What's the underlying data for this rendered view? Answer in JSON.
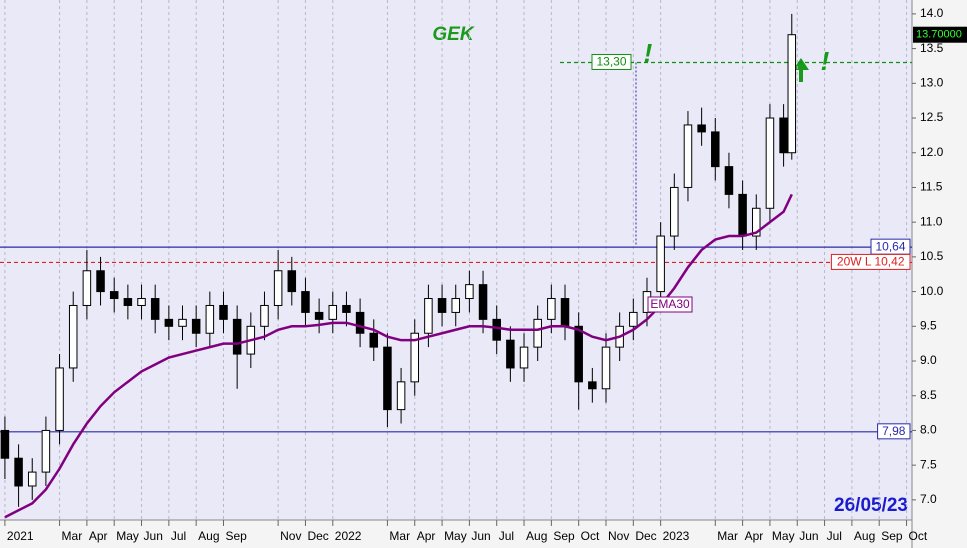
{
  "chart_data": {
    "type": "candlestick",
    "title": "GEK",
    "date_label": "26/05/23",
    "annotations": [
      "!",
      "!"
    ],
    "xlim": [
      -0.18,
      33.2
    ],
    "ylim": [
      6.71,
      14.2
    ],
    "xticks": [
      {
        "value": 0,
        "label": "2021"
      },
      {
        "value": 2,
        "label": "Mar"
      },
      {
        "value": 3,
        "label": "Apr"
      },
      {
        "value": 4,
        "label": "May"
      },
      {
        "value": 5,
        "label": "Jun"
      },
      {
        "value": 6,
        "label": "Jul"
      },
      {
        "value": 7,
        "label": "Aug"
      },
      {
        "value": 8,
        "label": "Sep"
      },
      {
        "value": 10,
        "label": "Nov"
      },
      {
        "value": 11,
        "label": "Dec"
      },
      {
        "value": 12,
        "label": "2022"
      },
      {
        "value": 14,
        "label": "Mar"
      },
      {
        "value": 15,
        "label": "Apr"
      },
      {
        "value": 16,
        "label": "May"
      },
      {
        "value": 17,
        "label": "Jun"
      },
      {
        "value": 18,
        "label": "Jul"
      },
      {
        "value": 19,
        "label": "Aug"
      },
      {
        "value": 20,
        "label": "Sep"
      },
      {
        "value": 21,
        "label": "Oct"
      },
      {
        "value": 22,
        "label": "Nov"
      },
      {
        "value": 23,
        "label": "Dec"
      },
      {
        "value": 24,
        "label": "2023"
      },
      {
        "value": 26,
        "label": "Mar"
      },
      {
        "value": 27,
        "label": "Apr"
      },
      {
        "value": 28,
        "label": "May"
      },
      {
        "value": 29,
        "label": "Jun"
      },
      {
        "value": 30,
        "label": "Jul"
      },
      {
        "value": 31,
        "label": "Aug"
      },
      {
        "value": 32,
        "label": "Sep"
      },
      {
        "value": 33,
        "label": "Oct"
      }
    ],
    "yticks": [
      {
        "value": 7,
        "label": "7.0"
      },
      {
        "value": 7.5,
        "label": "7.5"
      },
      {
        "value": 8,
        "label": "8.0"
      },
      {
        "value": 8.5,
        "label": "8.5"
      },
      {
        "value": 9,
        "label": "9.0"
      },
      {
        "value": 9.5,
        "label": "9.5"
      },
      {
        "value": 10,
        "label": "10.0"
      },
      {
        "value": 10.5,
        "label": "10.5"
      },
      {
        "value": 11,
        "label": "11.0"
      },
      {
        "value": 11.5,
        "label": "11.5"
      },
      {
        "value": 12,
        "label": "12.0"
      },
      {
        "value": 12.5,
        "label": "12.5"
      },
      {
        "value": 13,
        "label": "13.0"
      },
      {
        "value": 13.5,
        "label": "13.5"
      },
      {
        "value": 14,
        "label": "14.0"
      }
    ],
    "grid": true,
    "x": [
      0,
      0.5,
      1,
      1.5,
      2,
      2.5,
      3,
      3.5,
      4,
      4.5,
      5,
      5.5,
      6,
      6.5,
      7,
      7.5,
      8,
      8.5,
      9,
      9.5,
      10,
      10.5,
      11,
      11.5,
      12,
      12.5,
      13,
      13.5,
      14,
      14.5,
      15,
      15.5,
      16,
      16.5,
      17,
      17.5,
      18,
      18.5,
      19,
      19.5,
      20,
      20.5,
      21,
      21.5,
      22,
      22.5,
      23,
      23.5,
      24,
      24.5,
      25,
      25.5,
      26,
      26.5,
      27,
      27.5,
      28,
      28.5,
      28.8
    ],
    "open": [
      8.0,
      7.6,
      7.2,
      7.4,
      8.0,
      8.9,
      9.8,
      10.3,
      10.0,
      9.9,
      9.8,
      9.9,
      9.6,
      9.5,
      9.6,
      9.4,
      9.8,
      9.6,
      9.1,
      9.5,
      9.8,
      10.3,
      10.0,
      9.7,
      9.6,
      9.8,
      9.7,
      9.4,
      9.2,
      8.3,
      8.7,
      9.4,
      9.9,
      9.7,
      9.9,
      10.1,
      9.6,
      9.3,
      8.9,
      9.2,
      9.6,
      9.9,
      9.5,
      8.7,
      8.6,
      9.2,
      9.5,
      9.7,
      10.0,
      10.8,
      11.5,
      12.4,
      12.3,
      11.8,
      11.4,
      10.8,
      11.2,
      12.5,
      12.0
    ],
    "high": [
      8.2,
      7.8,
      7.6,
      8.2,
      9.1,
      10.0,
      10.6,
      10.5,
      10.2,
      10.1,
      10.1,
      10.1,
      9.8,
      9.8,
      9.8,
      10.0,
      10.0,
      9.8,
      9.7,
      10.0,
      10.6,
      10.5,
      10.2,
      9.9,
      10.0,
      10.0,
      9.9,
      9.6,
      9.4,
      8.9,
      9.6,
      10.1,
      10.1,
      10.1,
      10.3,
      10.3,
      9.8,
      9.5,
      9.4,
      9.8,
      10.1,
      10.1,
      9.7,
      8.9,
      9.4,
      9.7,
      9.9,
      10.2,
      11.0,
      11.7,
      12.6,
      12.65,
      12.5,
      12.0,
      11.6,
      11.4,
      12.7,
      12.7,
      14.0
    ],
    "low": [
      7.3,
      6.9,
      7.0,
      7.2,
      7.8,
      8.7,
      9.6,
      9.8,
      9.7,
      9.6,
      9.6,
      9.4,
      9.3,
      9.3,
      9.2,
      9.2,
      9.4,
      8.6,
      8.9,
      9.3,
      9.6,
      9.8,
      9.5,
      9.4,
      9.4,
      9.5,
      9.2,
      9.0,
      8.05,
      8.1,
      8.5,
      9.2,
      9.5,
      9.5,
      9.7,
      9.4,
      9.1,
      8.7,
      8.7,
      9.0,
      9.4,
      9.3,
      8.3,
      8.4,
      8.4,
      9.0,
      9.3,
      9.5,
      9.8,
      10.6,
      11.3,
      12.1,
      11.6,
      11.2,
      10.6,
      10.6,
      11.0,
      11.8,
      11.9
    ],
    "close": [
      7.6,
      7.2,
      7.4,
      8.0,
      8.9,
      9.8,
      10.3,
      10.0,
      9.9,
      9.8,
      9.9,
      9.6,
      9.5,
      9.6,
      9.4,
      9.8,
      9.6,
      9.1,
      9.5,
      9.8,
      10.3,
      10.0,
      9.7,
      9.6,
      9.8,
      9.7,
      9.4,
      9.2,
      8.3,
      8.7,
      9.4,
      9.9,
      9.7,
      9.9,
      10.1,
      9.6,
      9.3,
      8.9,
      9.2,
      9.6,
      9.9,
      9.5,
      8.7,
      8.6,
      9.2,
      9.5,
      9.7,
      10.0,
      10.8,
      11.5,
      12.4,
      12.3,
      11.8,
      11.4,
      10.8,
      11.2,
      12.5,
      12.0,
      13.7
    ],
    "ema": {
      "name": "EMA30",
      "color": "#800080",
      "values": [
        6.75,
        6.85,
        6.95,
        7.15,
        7.45,
        7.8,
        8.1,
        8.35,
        8.55,
        8.7,
        8.85,
        8.95,
        9.05,
        9.1,
        9.15,
        9.2,
        9.25,
        9.25,
        9.3,
        9.35,
        9.45,
        9.5,
        9.5,
        9.52,
        9.55,
        9.55,
        9.5,
        9.45,
        9.35,
        9.3,
        9.3,
        9.35,
        9.4,
        9.45,
        9.5,
        9.5,
        9.48,
        9.45,
        9.45,
        9.45,
        9.5,
        9.5,
        9.45,
        9.35,
        9.3,
        9.35,
        9.45,
        9.6,
        9.8,
        10.05,
        10.35,
        10.6,
        10.75,
        10.8,
        10.8,
        10.85,
        11.0,
        11.15,
        11.4
      ]
    },
    "levels": [
      {
        "value": 10.64,
        "label": "10,64",
        "color": "#2a2aa8"
      },
      {
        "value": 10.42,
        "label": "20W L 10,42",
        "color": "#e02020"
      },
      {
        "value": 7.98,
        "label": "7,98",
        "color": "#2a2aa8"
      },
      {
        "value": 13.3,
        "label": "13,30",
        "color": "#109010"
      }
    ],
    "last_price": {
      "value": 13.7,
      "label": "13.70000"
    }
  }
}
